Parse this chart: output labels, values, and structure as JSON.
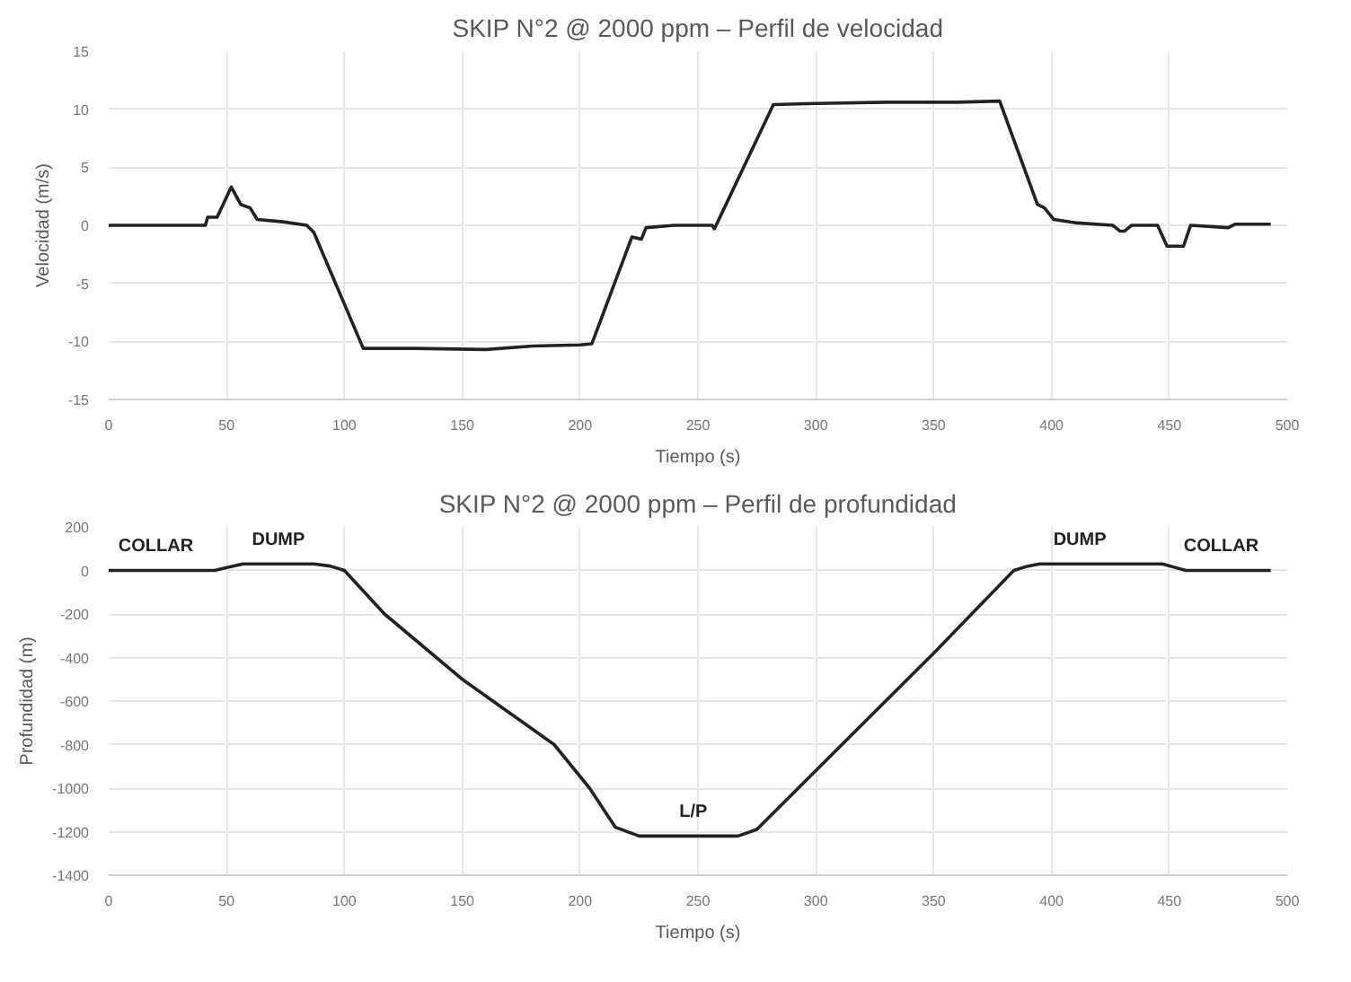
{
  "chart_data": [
    {
      "type": "line",
      "title": "SKIP N°2 @ 2000 ppm – Perfil de velocidad",
      "xlabel": "Tiempo (s)",
      "ylabel": "Velocidad (m/s)",
      "xlim": [
        0,
        500
      ],
      "xticks": [
        0,
        50,
        100,
        150,
        200,
        250,
        300,
        350,
        400,
        450,
        500
      ],
      "ylim": [
        -15,
        15
      ],
      "yticks": [
        -15,
        -10,
        -5,
        0,
        5,
        10,
        15
      ],
      "grid": true,
      "marker": "none",
      "line_style": "solid",
      "series": [
        {
          "color": "#222222",
          "x": [
            0,
            41,
            42,
            46,
            52,
            56,
            60,
            63,
            74,
            84,
            87,
            108,
            130,
            160,
            180,
            200,
            205,
            222,
            226,
            228,
            240,
            256,
            257,
            282,
            300,
            330,
            360,
            378,
            394,
            397,
            401,
            411,
            426,
            429,
            431,
            434,
            445,
            449,
            456,
            459,
            475,
            478,
            493
          ],
          "values": [
            0,
            0,
            0.7,
            0.7,
            3.3,
            1.8,
            1.5,
            0.5,
            0.3,
            0,
            -0.6,
            -10.6,
            -10.6,
            -10.7,
            -10.4,
            -10.3,
            -10.2,
            -1,
            -1.2,
            -0.2,
            0,
            0,
            -0.3,
            10.4,
            10.5,
            10.6,
            10.6,
            10.7,
            1.8,
            1.5,
            0.5,
            0.2,
            0,
            -0.5,
            -0.5,
            0,
            0,
            -1.8,
            -1.8,
            0,
            -0.2,
            0.1,
            0.1
          ]
        }
      ]
    },
    {
      "type": "line",
      "title": "SKIP N°2 @ 2000 ppm – Perfil de profundidad",
      "xlabel": "Tiempo (s)",
      "ylabel": "Profundidad (m)",
      "xlim": [
        0,
        500
      ],
      "xticks": [
        0,
        50,
        100,
        150,
        200,
        250,
        300,
        350,
        400,
        450,
        500
      ],
      "ylim": [
        -1400,
        200
      ],
      "yticks": [
        -1400,
        -1200,
        -1000,
        -800,
        -600,
        -400,
        -200,
        0,
        200
      ],
      "grid": true,
      "marker": "none",
      "line_style": "solid",
      "series": [
        {
          "color": "#222222",
          "x": [
            0,
            45,
            51,
            57,
            87,
            94,
            100,
            117,
            150,
            189,
            204,
            215,
            225,
            250,
            267,
            275,
            300,
            350,
            384,
            390,
            395,
            447,
            452,
            457,
            493
          ],
          "values": [
            0,
            0,
            15,
            30,
            30,
            20,
            0,
            -200,
            -500,
            -800,
            -1000,
            -1180,
            -1220,
            -1220,
            -1220,
            -1190,
            -920,
            -380,
            0,
            20,
            30,
            30,
            15,
            0,
            0
          ]
        }
      ],
      "annotations": [
        {
          "text": "COLLAR",
          "x": 20,
          "y": 0
        },
        {
          "text": "DUMP",
          "x": 72,
          "y": 30
        },
        {
          "text": "L/P",
          "x": 248,
          "y": -1220
        },
        {
          "text": "DUMP",
          "x": 412,
          "y": 30
        },
        {
          "text": "COLLAR",
          "x": 472,
          "y": 0
        }
      ]
    }
  ]
}
